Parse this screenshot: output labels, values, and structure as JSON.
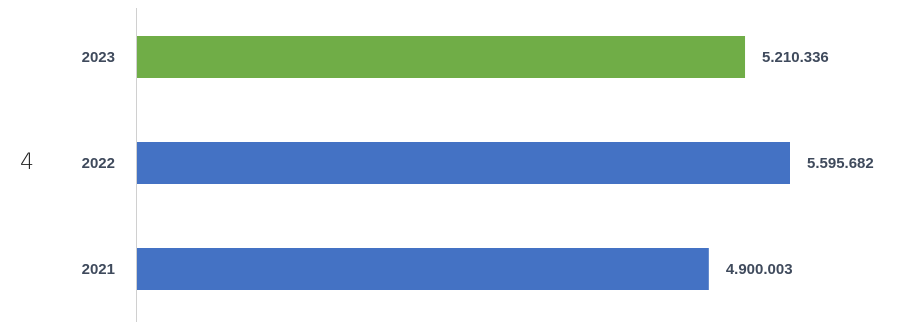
{
  "side_number": "4",
  "chart_data": {
    "type": "bar",
    "orientation": "horizontal",
    "categories": [
      "2023",
      "2022",
      "2021"
    ],
    "values": [
      5210336,
      5595682,
      4900003
    ],
    "value_labels": [
      "5.210.336",
      "5.595.682",
      "4.900.003"
    ],
    "bar_colors": [
      "#70ad47",
      "#4472c4",
      "#4472c4"
    ],
    "title": "",
    "xlabel": "",
    "ylabel": "",
    "grid": false,
    "legend": "none"
  }
}
